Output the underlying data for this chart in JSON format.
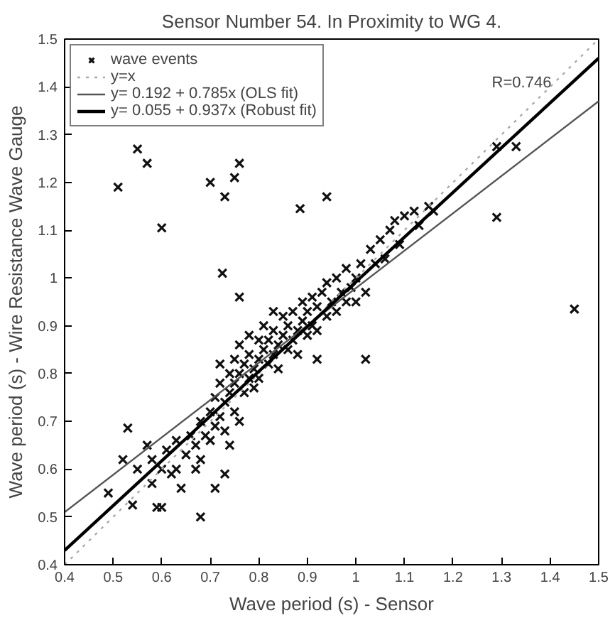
{
  "chart_data": {
    "type": "scatter",
    "title": "Sensor Number 54. In Proximity to WG 4.",
    "xlabel": "Wave period (s) - Sensor",
    "ylabel": "Wave period (s) - Wire Resistance Wave Gauge",
    "xlim": [
      0.4,
      1.5
    ],
    "ylim": [
      0.4,
      1.5
    ],
    "xticks": [
      0.4,
      0.5,
      0.6,
      0.7,
      0.8,
      0.9,
      {
        "value": 1,
        "label": "1"
      },
      1.1,
      1.2,
      1.3,
      1.4,
      1.5
    ],
    "yticks": [
      0.4,
      0.5,
      0.6,
      0.7,
      0.8,
      0.9,
      {
        "value": 1,
        "label": "1"
      },
      1.1,
      1.2,
      1.3,
      1.4,
      1.5
    ],
    "grid": false,
    "legend": "top left",
    "annotations": [
      "R=0.746"
    ],
    "series": [
      {
        "name": "wave events",
        "marker": "cross",
        "color": "#111111",
        "x": [
          0.51,
          0.55,
          0.57,
          0.6,
          0.7,
          0.73,
          0.75,
          0.76,
          0.725,
          0.885,
          0.94,
          1.29,
          1.33,
          1.29,
          1.45,
          0.76,
          1.02,
          0.92,
          0.53,
          0.49,
          0.54,
          0.6,
          0.68,
          0.71,
          0.73,
          0.52,
          0.55,
          0.57,
          0.58,
          0.58,
          0.59,
          0.6,
          0.61,
          0.62,
          0.63,
          0.63,
          0.64,
          0.65,
          0.66,
          0.67,
          0.67,
          0.68,
          0.68,
          0.69,
          0.7,
          0.7,
          0.71,
          0.71,
          0.72,
          0.72,
          0.72,
          0.73,
          0.73,
          0.74,
          0.74,
          0.74,
          0.75,
          0.75,
          0.75,
          0.76,
          0.76,
          0.76,
          0.77,
          0.77,
          0.78,
          0.78,
          0.78,
          0.79,
          0.79,
          0.8,
          0.8,
          0.8,
          0.81,
          0.81,
          0.82,
          0.82,
          0.83,
          0.83,
          0.83,
          0.84,
          0.84,
          0.85,
          0.85,
          0.86,
          0.86,
          0.87,
          0.87,
          0.88,
          0.88,
          0.89,
          0.89,
          0.9,
          0.9,
          0.91,
          0.91,
          0.92,
          0.92,
          0.93,
          0.94,
          0.94,
          0.95,
          0.96,
          0.96,
          0.97,
          0.98,
          0.98,
          0.99,
          1.0,
          1.0,
          1.01,
          1.02,
          1.03,
          1.04,
          1.05,
          1.06,
          1.07,
          1.08,
          1.09,
          1.1,
          1.12,
          1.13,
          1.15,
          1.16
        ],
        "values": [
          1.19,
          1.27,
          1.24,
          1.105,
          1.2,
          1.17,
          1.21,
          1.24,
          1.01,
          1.145,
          1.17,
          1.275,
          1.275,
          1.127,
          0.935,
          0.96,
          0.83,
          0.83,
          0.686,
          0.55,
          0.525,
          0.52,
          0.5,
          0.56,
          0.59,
          0.62,
          0.6,
          0.65,
          0.62,
          0.57,
          0.52,
          0.6,
          0.64,
          0.59,
          0.6,
          0.66,
          0.56,
          0.63,
          0.67,
          0.6,
          0.65,
          0.62,
          0.7,
          0.67,
          0.72,
          0.66,
          0.69,
          0.75,
          0.71,
          0.78,
          0.82,
          0.74,
          0.68,
          0.76,
          0.8,
          0.65,
          0.72,
          0.78,
          0.83,
          0.7,
          0.8,
          0.86,
          0.76,
          0.82,
          0.79,
          0.84,
          0.88,
          0.81,
          0.77,
          0.83,
          0.87,
          0.79,
          0.85,
          0.9,
          0.82,
          0.87,
          0.84,
          0.89,
          0.93,
          0.86,
          0.81,
          0.88,
          0.92,
          0.85,
          0.9,
          0.87,
          0.93,
          0.89,
          0.84,
          0.91,
          0.95,
          0.88,
          0.93,
          0.9,
          0.96,
          0.94,
          0.89,
          0.97,
          0.92,
          0.99,
          0.95,
          1.0,
          0.93,
          0.97,
          1.02,
          0.95,
          0.98,
          1.0,
          0.95,
          1.03,
          0.97,
          1.06,
          1.03,
          1.08,
          1.04,
          1.1,
          1.12,
          1.07,
          1.13,
          1.14,
          1.11,
          1.15,
          1.14
        ]
      },
      {
        "name": "y=x",
        "type": "line",
        "line_style": "dotted",
        "color": "#aaaaaa",
        "x": [
          0.4,
          1.5
        ],
        "values": [
          0.4,
          1.5
        ]
      },
      {
        "name": "y= 0.192 + 0.785x (OLS fit)",
        "type": "line",
        "line_style": "solid",
        "color": "#555555",
        "x": [
          0.4,
          1.5
        ],
        "values": [
          0.51,
          1.37
        ]
      },
      {
        "name": "y= 0.055 + 0.937x (Robust fit)",
        "type": "line",
        "line_style": "solid",
        "color": "#000000",
        "x": [
          0.4,
          1.5
        ],
        "values": [
          0.43,
          1.46
        ]
      }
    ]
  }
}
